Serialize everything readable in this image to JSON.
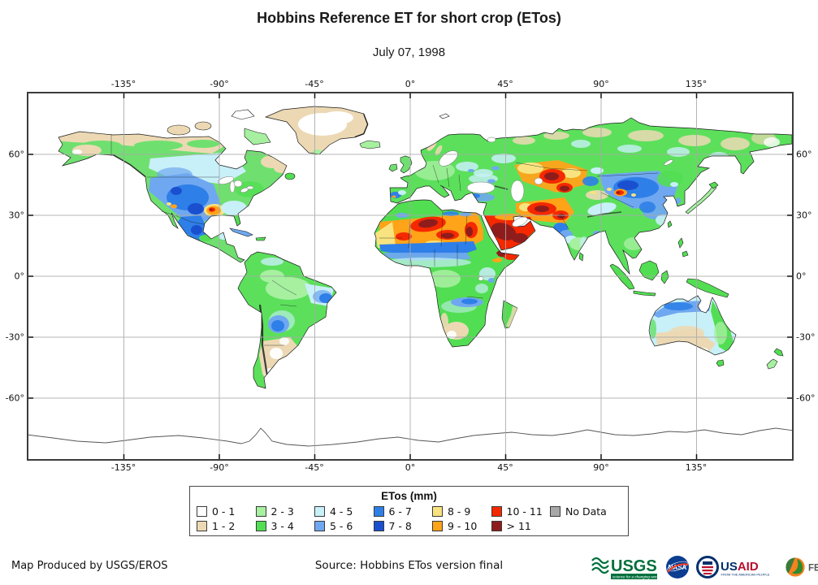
{
  "title": "Hobbins Reference ET for short crop (ETos)",
  "subtitle": "July 07, 1998",
  "axes": {
    "lon_labels": [
      "-135°",
      "-90°",
      "-45°",
      "0°",
      "45°",
      "90°",
      "135°"
    ],
    "lat_labels": [
      "60°",
      "30°",
      "0°",
      "-30°",
      "-60°"
    ]
  },
  "legend": {
    "title": "ETos (mm)",
    "items": [
      {
        "label": "0 - 1",
        "color": "#ffffff"
      },
      {
        "label": "1 - 2",
        "color": "#ecd9b4"
      },
      {
        "label": "2 - 3",
        "color": "#a6f0a0"
      },
      {
        "label": "3 - 4",
        "color": "#52de52"
      },
      {
        "label": "4 - 5",
        "color": "#c8f0f8"
      },
      {
        "label": "5 - 6",
        "color": "#6fa8f0"
      },
      {
        "label": "6 - 7",
        "color": "#2e7fe8"
      },
      {
        "label": "7 - 8",
        "color": "#1a50d0"
      },
      {
        "label": "8 - 9",
        "color": "#f8e380"
      },
      {
        "label": "9 - 10",
        "color": "#ffa319"
      },
      {
        "label": "10 - 11",
        "color": "#f52800"
      },
      {
        "label": "> 11",
        "color": "#8f1c1c"
      },
      {
        "label": "No Data",
        "color": "#a8a8a8"
      }
    ]
  },
  "map": {
    "type": "world-choropleth",
    "projection": "equirectangular",
    "lon_range": [
      -180,
      180
    ],
    "lat_range": [
      -90,
      90
    ],
    "gridlines": {
      "longitude_step_deg": 45,
      "latitude_step_deg": 30
    },
    "description": "Global gridded ETos for 1998-07-07: highest values (9 to >11 mm) over the Sahara, Arabian Peninsula, Horn of Africa, Iran-Afghanistan and Central Asia; 5-8 mm over the western United States, northern Mexico, the Sahel, Mongolia and northern China; 2-5 mm across most other vegetated land; 0-2 mm (white/tan) over oceans, Greenland, Patagonia, central Australia and high Arctic."
  },
  "footer": {
    "left": "Map Produced by USGS/EROS",
    "source": "Source: Hobbins ETos version final",
    "logos": {
      "usgs": {
        "name": "USGS",
        "tagline": "science for a changing world"
      },
      "nasa": {
        "name": "NASA"
      },
      "usaid": {
        "name_blue": "US",
        "name_red": "AID",
        "tagline": "FROM THE AMERICAN PEOPLE"
      },
      "fewsnet": {
        "name": "FEWS NET"
      }
    }
  }
}
